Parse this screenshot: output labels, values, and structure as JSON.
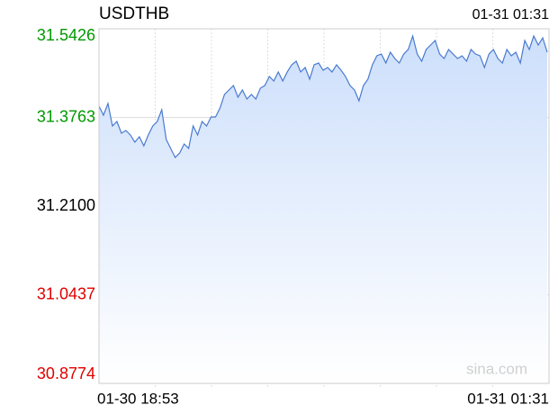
{
  "chart_data": {
    "type": "line",
    "title": "USDTHB",
    "latest_time": "01-31 01:31",
    "time_start": "01-30 18:53",
    "time_end": "01-31 01:31",
    "watermark": "sina.com",
    "ylim": [
      30.8774,
      31.5426
    ],
    "yticks": [
      30.8774,
      31.0437,
      {
        "value": 31.21,
        "label": "31.2100"
      },
      31.3763,
      31.5426
    ],
    "ytick_colors": [
      "#e00000",
      "#e00000",
      "#000000",
      "#009900",
      "#009900"
    ],
    "grid": true,
    "series": [
      {
        "color": "#4a7bd0",
        "values": [
          31.3974,
          31.3805,
          31.4025,
          31.3603,
          31.3687,
          31.3468,
          31.3518,
          31.3434,
          31.3299,
          31.34,
          31.3231,
          31.3434,
          31.3603,
          31.3687,
          31.3907,
          31.3349,
          31.3181,
          31.3012,
          31.3096,
          31.3265,
          31.3181,
          31.3603,
          31.3434,
          31.3687,
          31.3603,
          31.3771,
          31.3771,
          31.394,
          31.4194,
          31.4278,
          31.4362,
          31.4143,
          31.4278,
          31.4109,
          31.4194,
          31.4109,
          31.4312,
          31.4362,
          31.4531,
          31.4447,
          31.4616,
          31.4447,
          31.4616,
          31.4751,
          31.4818,
          31.4616,
          31.47,
          31.4481,
          31.4751,
          31.4784,
          31.4649,
          31.47,
          31.4616,
          31.4751,
          31.4649,
          31.4531,
          31.4362,
          31.4278,
          31.4075,
          31.4362,
          31.4481,
          31.4751,
          31.492,
          31.4953,
          31.4784,
          31.4987,
          31.4869,
          31.4784,
          31.4953,
          31.5038,
          31.5291,
          31.4953,
          31.4818,
          31.5038,
          31.5122,
          31.5207,
          31.4953,
          31.4869,
          31.5038,
          31.4953,
          31.4869,
          31.492,
          31.4818,
          31.5038,
          31.4953,
          31.492,
          31.47,
          31.4953,
          31.5038,
          31.4869,
          31.4784,
          31.5038,
          31.492,
          31.4987,
          31.4784,
          31.5207,
          31.5038,
          31.5291,
          31.5122,
          31.5257,
          31.4987
        ]
      }
    ]
  }
}
